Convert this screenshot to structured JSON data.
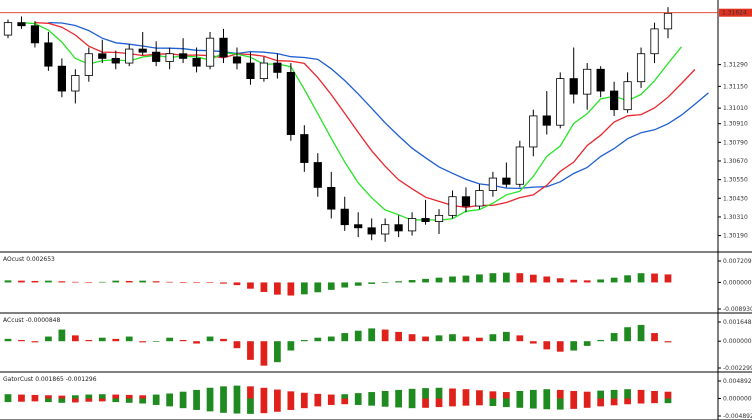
{
  "chart_data": [
    {
      "type": "candlestick",
      "panel": "main",
      "current_price_label": "1.31624",
      "y_tick_labels": [
        "1.31624",
        "1.31290",
        "1.31150",
        "1.31010",
        "1.30910",
        "1.30790",
        "1.30670",
        "1.30550",
        "1.30430",
        "1.30310",
        "1.30190"
      ],
      "ylim": [
        1.3011,
        1.3168
      ],
      "colors": {
        "bull": "#ffffff",
        "bear": "#000000",
        "jaw": "#1f5fcf",
        "teeth": "#e8262d",
        "lips": "#28e428",
        "price_line": "#e0301e"
      },
      "candles_ohlc": [
        [
          1.3148,
          1.3158,
          1.3146,
          1.3156
        ],
        [
          1.3156,
          1.316,
          1.3152,
          1.3154
        ],
        [
          1.3154,
          1.3157,
          1.314,
          1.3143
        ],
        [
          1.3143,
          1.315,
          1.3125,
          1.3128
        ],
        [
          1.3128,
          1.3133,
          1.3108,
          1.3112
        ],
        [
          1.3112,
          1.3126,
          1.3104,
          1.3122
        ],
        [
          1.3122,
          1.314,
          1.3118,
          1.3136
        ],
        [
          1.3136,
          1.3145,
          1.313,
          1.3133
        ],
        [
          1.3133,
          1.3138,
          1.3126,
          1.313
        ],
        [
          1.313,
          1.3142,
          1.3128,
          1.3139
        ],
        [
          1.3139,
          1.315,
          1.3135,
          1.3137
        ],
        [
          1.3137,
          1.3144,
          1.3128,
          1.3131
        ],
        [
          1.3131,
          1.314,
          1.3126,
          1.3136
        ],
        [
          1.3136,
          1.3146,
          1.313,
          1.3133
        ],
        [
          1.3133,
          1.314,
          1.3124,
          1.3128
        ],
        [
          1.3128,
          1.315,
          1.3126,
          1.3146
        ],
        [
          1.3146,
          1.3152,
          1.313,
          1.3134
        ],
        [
          1.3134,
          1.314,
          1.3126,
          1.313
        ],
        [
          1.313,
          1.3137,
          1.3116,
          1.312
        ],
        [
          1.312,
          1.3134,
          1.3118,
          1.313
        ],
        [
          1.313,
          1.3136,
          1.312,
          1.3124
        ],
        [
          1.3124,
          1.313,
          1.308,
          1.3084
        ],
        [
          1.3084,
          1.309,
          1.306,
          1.3066
        ],
        [
          1.3066,
          1.3072,
          1.3044,
          1.305
        ],
        [
          1.305,
          1.306,
          1.303,
          1.3036
        ],
        [
          1.3036,
          1.3044,
          1.3022,
          1.3026
        ],
        [
          1.3026,
          1.3034,
          1.3018,
          1.3024
        ],
        [
          1.3024,
          1.303,
          1.3016,
          1.302
        ],
        [
          1.302,
          1.303,
          1.3015,
          1.3026
        ],
        [
          1.3026,
          1.3032,
          1.3018,
          1.3022
        ],
        [
          1.3022,
          1.3034,
          1.3019,
          1.303
        ],
        [
          1.303,
          1.3042,
          1.3026,
          1.3028
        ],
        [
          1.3028,
          1.3036,
          1.302,
          1.3032
        ],
        [
          1.3032,
          1.3048,
          1.303,
          1.3044
        ],
        [
          1.3044,
          1.305,
          1.3034,
          1.3038
        ],
        [
          1.3038,
          1.3052,
          1.3036,
          1.3048
        ],
        [
          1.3048,
          1.306,
          1.3044,
          1.3056
        ],
        [
          1.3056,
          1.3066,
          1.305,
          1.3052
        ],
        [
          1.3052,
          1.308,
          1.305,
          1.3076
        ],
        [
          1.3076,
          1.31,
          1.307,
          1.3096
        ],
        [
          1.3096,
          1.3112,
          1.3084,
          1.309
        ],
        [
          1.309,
          1.3124,
          1.3088,
          1.312
        ],
        [
          1.312,
          1.314,
          1.3104,
          1.311
        ],
        [
          1.311,
          1.313,
          1.31,
          1.3126
        ],
        [
          1.3126,
          1.3128,
          1.3108,
          1.3112
        ],
        [
          1.3112,
          1.3118,
          1.3096,
          1.31
        ],
        [
          1.31,
          1.3124,
          1.3098,
          1.3118
        ],
        [
          1.3118,
          1.314,
          1.3114,
          1.3136
        ],
        [
          1.3136,
          1.3156,
          1.313,
          1.3152
        ],
        [
          1.3152,
          1.3166,
          1.3146,
          1.3162
        ]
      ]
    },
    {
      "type": "bar",
      "panel": "indicator",
      "label": "AOcust 0.002653",
      "y_tick_labels": [
        "0.007209",
        "0.000000",
        "-0.008930"
      ],
      "ylim": [
        -0.00893,
        0.007209
      ],
      "colors": {
        "up": "#1f8a1f",
        "down": "#e0201a"
      },
      "values": [
        0.0007,
        0.0006,
        0.0005,
        0.0006,
        0.0004,
        0.0002,
        -0.0001,
        0.0002,
        0.0006,
        0.0005,
        0.0006,
        0.0004,
        0.0002,
        0.0001,
        -0.0001,
        -0.0002,
        -0.0004,
        -0.0009,
        -0.0021,
        -0.0032,
        -0.0041,
        -0.0044,
        -0.004,
        -0.0033,
        -0.0025,
        -0.0017,
        -0.0011,
        -0.0005,
        0.0,
        0.0004,
        0.0008,
        0.0012,
        0.0016,
        0.002,
        0.0023,
        0.0027,
        0.0031,
        0.0033,
        0.0031,
        0.0026,
        0.002,
        0.0014,
        0.0009,
        0.0007,
        0.001,
        0.0016,
        0.0024,
        0.0031,
        0.003,
        0.0027
      ]
    },
    {
      "type": "bar",
      "panel": "indicator",
      "label": "ACcust -0.0000848",
      "y_tick_labels": [
        "0.0016487",
        "0.000000",
        "-0.0022999"
      ],
      "ylim": [
        -0.0022999,
        0.0016487
      ],
      "colors": {
        "up": "#1f8a1f",
        "down": "#e0201a"
      },
      "values": [
        0.0002,
        0.0001,
        -0.0001,
        0.0004,
        0.001,
        0.0005,
        0.0001,
        0.0003,
        0.0002,
        0.0004,
        -0.0001,
        0.0,
        0.0003,
        0.0001,
        -0.0002,
        0.0004,
        0.0002,
        -0.0006,
        -0.0016,
        -0.0021,
        -0.0018,
        -0.0008,
        0.0001,
        0.0003,
        0.0004,
        0.0007,
        0.0009,
        0.0011,
        0.001,
        0.0008,
        0.0006,
        0.0004,
        0.0005,
        0.0006,
        0.0004,
        0.0003,
        0.0006,
        0.0008,
        0.0005,
        -0.0002,
        -0.0007,
        -0.0009,
        -0.0008,
        -0.0004,
        0.0001,
        0.0007,
        0.0012,
        0.0014,
        0.0007,
        -0.0001
      ]
    },
    {
      "type": "bar",
      "panel": "indicator",
      "label": "GatorCust 0.001865 -0.001296",
      "y_tick_labels": [
        "0.004892",
        "0.000000",
        "-0.004892"
      ],
      "ylim": [
        -0.004892,
        0.004892
      ],
      "colors": {
        "up": "#1f8a1f",
        "down": "#e0201a"
      },
      "upper": [
        0.0012,
        0.0011,
        0.001,
        0.0009,
        0.0008,
        0.0009,
        0.0011,
        0.0012,
        0.0011,
        0.001,
        0.0009,
        0.0011,
        0.0014,
        0.0019,
        0.0024,
        0.003,
        0.0034,
        0.0036,
        0.0034,
        0.003,
        0.0025,
        0.002,
        0.0016,
        0.0013,
        0.0011,
        0.0012,
        0.0015,
        0.0018,
        0.0021,
        0.0024,
        0.0027,
        0.0029,
        0.003,
        0.0028,
        0.0026,
        0.0023,
        0.002,
        0.0018,
        0.0021,
        0.0024,
        0.0026,
        0.0024,
        0.0021,
        0.0019,
        0.0022,
        0.0024,
        0.0026,
        0.0024,
        0.0021,
        0.0019
      ],
      "lower": [
        -0.001,
        -0.0009,
        -0.0008,
        -0.001,
        -0.0012,
        -0.0011,
        -0.0009,
        -0.0008,
        -0.001,
        -0.0012,
        -0.0014,
        -0.0018,
        -0.0022,
        -0.0027,
        -0.0032,
        -0.0036,
        -0.004,
        -0.0042,
        -0.0043,
        -0.0041,
        -0.0037,
        -0.0032,
        -0.0027,
        -0.0022,
        -0.0018,
        -0.0016,
        -0.0018,
        -0.002,
        -0.0023,
        -0.0025,
        -0.0027,
        -0.0026,
        -0.0024,
        -0.0022,
        -0.002,
        -0.0019,
        -0.0021,
        -0.0024,
        -0.0026,
        -0.0028,
        -0.003,
        -0.0031,
        -0.0029,
        -0.0026,
        -0.0022,
        -0.0019,
        -0.0016,
        -0.0014,
        -0.0013,
        -0.0013
      ]
    }
  ]
}
